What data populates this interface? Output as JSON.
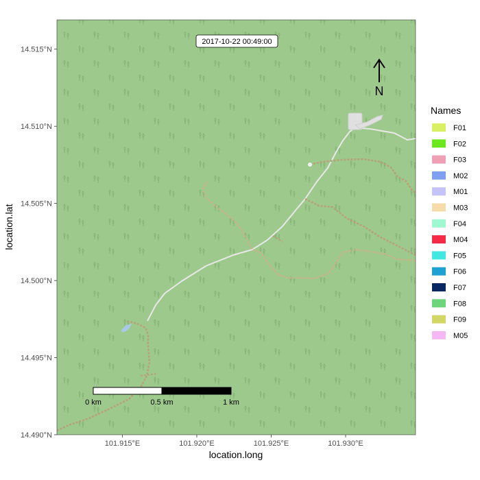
{
  "chart_data": {
    "type": "map",
    "timestamp": "2017-10-22 00:49:00",
    "xlabel": "location.long",
    "ylabel": "location.lat",
    "xlim": [
      101.9106,
      101.9347
    ],
    "ylim": [
      14.49,
      14.5169
    ],
    "x_ticks": [
      {
        "value": 101.915,
        "label": "101.915°E"
      },
      {
        "value": 101.92,
        "label": "101.920°E"
      },
      {
        "value": 101.925,
        "label": "101.925°E"
      },
      {
        "value": 101.93,
        "label": "101.930°E"
      }
    ],
    "y_ticks": [
      {
        "value": 14.49,
        "label": "14.490°N"
      },
      {
        "value": 14.495,
        "label": "14.495°N"
      },
      {
        "value": 14.5,
        "label": "14.500°N"
      },
      {
        "value": 14.505,
        "label": "14.505°N"
      },
      {
        "value": 14.51,
        "label": "14.510°N"
      },
      {
        "value": 14.515,
        "label": "14.515°N"
      }
    ],
    "legend": {
      "title": "Names",
      "placement": "right",
      "entries": [
        {
          "name": "F01",
          "color": "#d9f065"
        },
        {
          "name": "F02",
          "color": "#6ee81e"
        },
        {
          "name": "F03",
          "color": "#f0a0b4"
        },
        {
          "name": "M02",
          "color": "#7fa0f0"
        },
        {
          "name": "M01",
          "color": "#c4c4fa"
        },
        {
          "name": "M03",
          "color": "#f5dcaa"
        },
        {
          "name": "F04",
          "color": "#a0f8d0"
        },
        {
          "name": "M04",
          "color": "#f52a46"
        },
        {
          "name": "F05",
          "color": "#40e8e0"
        },
        {
          "name": "F06",
          "color": "#1fa0d2"
        },
        {
          "name": "F07",
          "color": "#0a2660"
        },
        {
          "name": "F08",
          "color": "#6ed67a"
        },
        {
          "name": "F09",
          "color": "#d2d664"
        },
        {
          "name": "M05",
          "color": "#f5b8f5"
        }
      ]
    },
    "scale_bar": {
      "labels": [
        "0 km",
        "0.5 km",
        "1 km"
      ]
    },
    "north_arrow": {
      "label": "N"
    },
    "colors": {
      "background": "#9dc98c",
      "road": "#ececec",
      "track": "#d2b48c"
    }
  }
}
